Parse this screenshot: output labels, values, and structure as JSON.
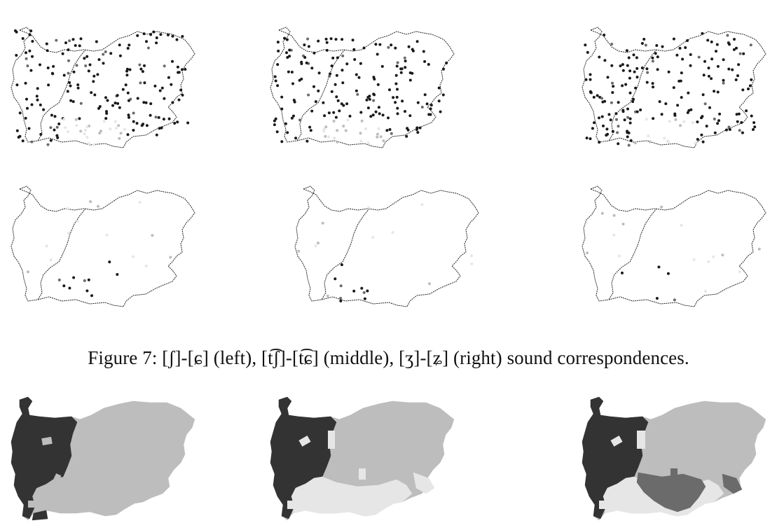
{
  "figure": {
    "caption": "Figure 7: [ʃ]-[ɕ] (left), [t͡ʃ]-[t͡ɕ] (middle), [ʒ]-[ʑ] (right) sound correspondences.",
    "colors": {
      "dark": "#333333",
      "mid": "#6b6b6b",
      "light": "#bdbdbd",
      "pale": "#e6e6e6",
      "outline": "#222222"
    },
    "maps": [
      "dot-map",
      "dot-map",
      "dot-map",
      "dot-map",
      "dot-map",
      "dot-map"
    ],
    "region_maps": [
      "region-map",
      "region-map",
      "region-map"
    ]
  }
}
